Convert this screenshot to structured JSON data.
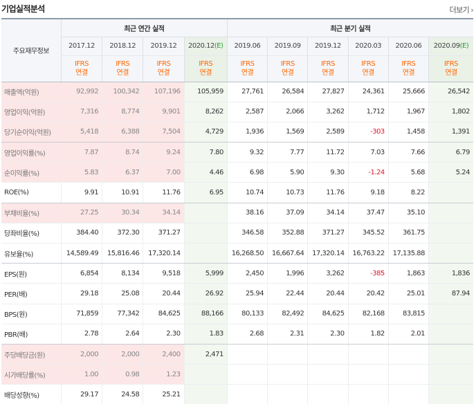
{
  "header": {
    "title": "기업실적분석",
    "more_label": "더보기"
  },
  "table": {
    "row_header_label": "주요재무정보",
    "annual_group_label": "최근 연간 실적",
    "quarter_group_label": "최근 분기 실적",
    "annual_periods": [
      "2017.12",
      "2018.12",
      "2019.12",
      "2020.12"
    ],
    "annual_estimate_mark": "(E)",
    "quarter_periods": [
      "2019.06",
      "2019.09",
      "2019.12",
      "2020.03",
      "2020.06",
      "2020.09"
    ],
    "quarter_estimate_mark": "(E)",
    "standard_line1": "IFRS",
    "standard_line2": "연결",
    "rows": [
      {
        "label": "매출액(억원)",
        "values": [
          "92,992",
          "100,342",
          "107,196",
          "105,959",
          "27,761",
          "26,584",
          "27,827",
          "24,361",
          "25,666",
          "26,542"
        ]
      },
      {
        "label": "영업이익(억원)",
        "values": [
          "7,316",
          "8,774",
          "9,901",
          "8,262",
          "2,587",
          "2,066",
          "3,262",
          "1,712",
          "1,967",
          "1,802"
        ]
      },
      {
        "label": "당기순이익(억원)",
        "values": [
          "5,418",
          "6,388",
          "7,504",
          "4,729",
          "1,936",
          "1,569",
          "2,589",
          "-303",
          "1,458",
          "1,391"
        ]
      },
      {
        "label": "영업이익률(%)",
        "values": [
          "7.87",
          "8.74",
          "9.24",
          "7.80",
          "9.32",
          "7.77",
          "11.72",
          "7.03",
          "7.66",
          "6.79"
        ]
      },
      {
        "label": "순이익률(%)",
        "values": [
          "5.83",
          "6.37",
          "7.00",
          "4.46",
          "6.98",
          "5.90",
          "9.30",
          "-1.24",
          "5.68",
          "5.24"
        ]
      },
      {
        "label": "ROE(%)",
        "values": [
          "9.91",
          "10.91",
          "11.76",
          "6.95",
          "10.74",
          "10.73",
          "11.76",
          "9.18",
          "8.22",
          ""
        ]
      },
      {
        "label": "부채비율(%)",
        "values": [
          "27.25",
          "30.34",
          "34.14",
          "",
          "38.16",
          "37.09",
          "34.14",
          "37.47",
          "35.10",
          ""
        ]
      },
      {
        "label": "당좌비율(%)",
        "values": [
          "384.40",
          "372.30",
          "371.27",
          "",
          "346.58",
          "352.88",
          "371.27",
          "345.52",
          "361.75",
          ""
        ]
      },
      {
        "label": "유보율(%)",
        "values": [
          "14,589.49",
          "15,816.46",
          "17,320.14",
          "",
          "16,268.50",
          "16,667.64",
          "17,320.14",
          "16,763.22",
          "17,135.88",
          ""
        ]
      },
      {
        "label": "EPS(원)",
        "values": [
          "6,854",
          "8,134",
          "9,518",
          "5,999",
          "2,450",
          "1,996",
          "3,262",
          "-385",
          "1,863",
          "1,836"
        ]
      },
      {
        "label": "PER(배)",
        "values": [
          "29.18",
          "25.08",
          "20.44",
          "26.92",
          "25.94",
          "22.44",
          "20.44",
          "20.42",
          "25.01",
          "87.94"
        ]
      },
      {
        "label": "BPS(원)",
        "values": [
          "71,859",
          "77,342",
          "84,625",
          "88,166",
          "80,133",
          "82,492",
          "84,625",
          "82,168",
          "83,815",
          ""
        ]
      },
      {
        "label": "PBR(배)",
        "values": [
          "2.78",
          "2.64",
          "2.30",
          "1.83",
          "2.68",
          "2.31",
          "2.30",
          "1.82",
          "2.01",
          ""
        ]
      },
      {
        "label": "주당배당금(원)",
        "values": [
          "2,000",
          "2,000",
          "2,400",
          "2,471",
          "",
          "",
          "",
          "",
          "",
          ""
        ]
      },
      {
        "label": "시가배당률(%)",
        "values": [
          "1.00",
          "0.98",
          "1.23",
          "",
          "",
          "",
          "",
          "",
          "",
          ""
        ]
      },
      {
        "label": "배당성향(%)",
        "values": [
          "29.17",
          "24.58",
          "25.21",
          "",
          "",
          "",
          "",
          "",
          "",
          ""
        ]
      }
    ]
  },
  "colors": {
    "highlight_bg": "#fce6e6",
    "estimate_bg": "#f2f7f0",
    "negative_text": "#e0152a",
    "standard_text": "#ff6600",
    "estimate_mark": "#2f9a38"
  }
}
